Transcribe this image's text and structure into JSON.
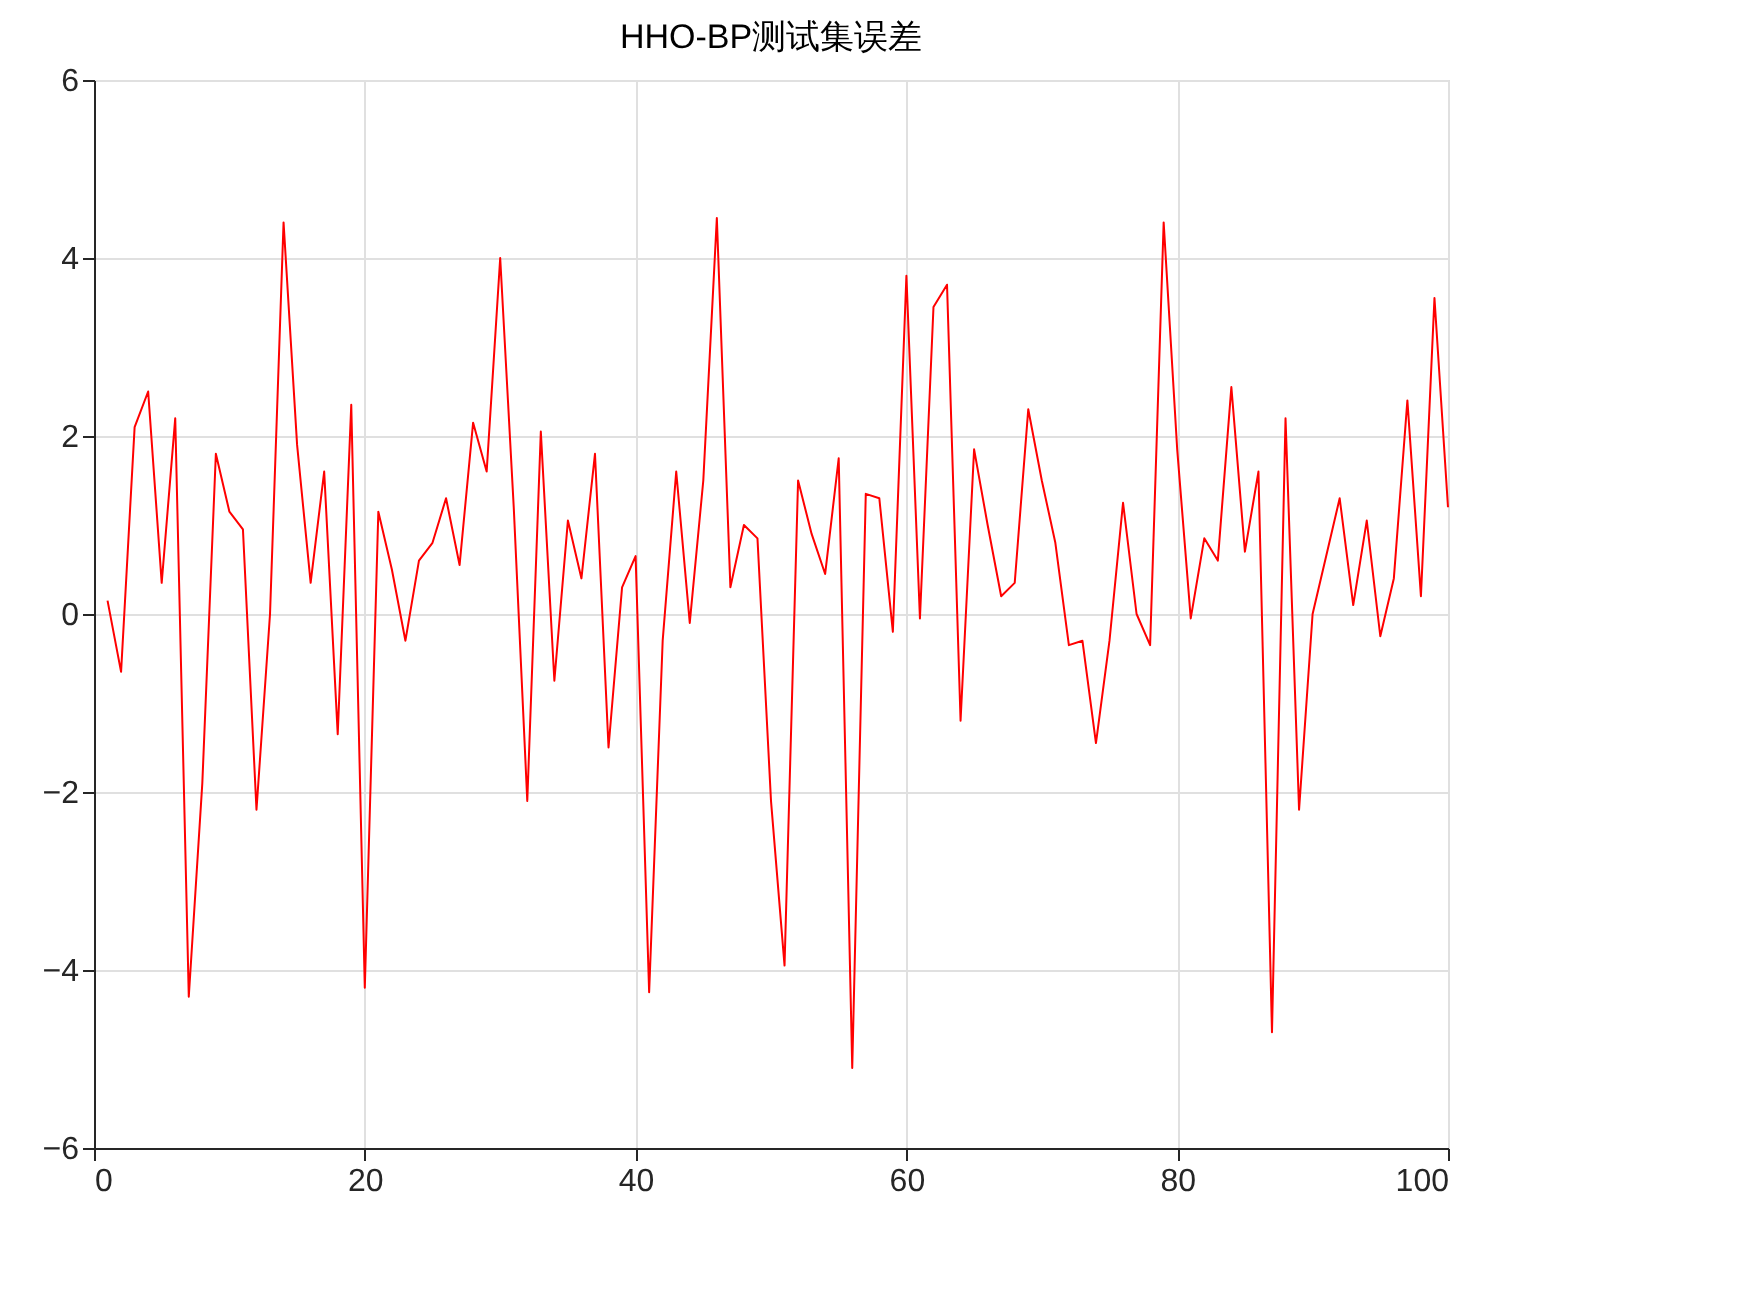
{
  "chart_data": {
    "type": "line",
    "title": "HHO-BP测试集误差",
    "x": [
      1,
      2,
      3,
      4,
      5,
      6,
      7,
      8,
      9,
      10,
      11,
      12,
      13,
      14,
      15,
      16,
      17,
      18,
      19,
      20,
      21,
      22,
      23,
      24,
      25,
      26,
      27,
      28,
      29,
      30,
      31,
      32,
      33,
      34,
      35,
      36,
      37,
      38,
      39,
      40,
      41,
      42,
      43,
      44,
      45,
      46,
      47,
      48,
      49,
      50,
      51,
      52,
      53,
      54,
      55,
      56,
      57,
      58,
      59,
      60,
      61,
      62,
      63,
      64,
      65,
      66,
      67,
      68,
      69,
      70,
      71,
      72,
      73,
      74,
      75,
      76,
      77,
      78,
      79,
      80,
      81,
      82,
      83,
      84,
      85,
      86,
      87,
      88,
      89,
      90,
      91,
      92,
      93,
      94,
      95,
      96,
      97,
      98,
      99,
      100
    ],
    "series": [
      {
        "color": "#ff0000",
        "values": [
          0.15,
          -0.65,
          2.1,
          2.5,
          0.35,
          2.2,
          -4.3,
          -1.9,
          1.8,
          1.15,
          0.95,
          -2.2,
          0,
          4.4,
          1.9,
          0.35,
          1.6,
          -1.35,
          2.35,
          -4.2,
          1.15,
          0.5,
          -0.3,
          0.6,
          0.8,
          1.3,
          0.55,
          2.15,
          1.6,
          4.0,
          1.2,
          -2.1,
          2.05,
          -0.75,
          1.05,
          0.4,
          1.8,
          -1.5,
          0.3,
          0.65,
          -4.25,
          -0.3,
          1.6,
          -0.1,
          1.5,
          4.45,
          0.3,
          1.0,
          0.85,
          -2.1,
          -3.95,
          1.5,
          0.9,
          0.45,
          1.75,
          -5.1,
          1.35,
          1.3,
          -0.2,
          3.8,
          -0.05,
          3.45,
          3.7,
          -1.2,
          1.85,
          1.0,
          0.2,
          0.35,
          2.3,
          1.5,
          0.8,
          -0.35,
          -0.3,
          -1.45,
          -0.3,
          1.25,
          0,
          -0.35,
          4.4,
          1.85,
          -0.05,
          0.85,
          0.6,
          2.55,
          0.7,
          1.6,
          -4.7,
          2.2,
          -2.2,
          0,
          0.65,
          1.3,
          0.1,
          1.05,
          -0.25,
          0.4,
          2.4,
          0.2,
          3.55,
          1.2
        ]
      }
    ],
    "xlim": [
      0,
      100
    ],
    "xticks": [
      0,
      20,
      40,
      60,
      80,
      100
    ],
    "ylim": [
      -6,
      6
    ],
    "yticks": [
      -6,
      -4,
      -2,
      0,
      2,
      4,
      6
    ],
    "grid": true,
    "marker": "none",
    "line_style": "solid"
  }
}
